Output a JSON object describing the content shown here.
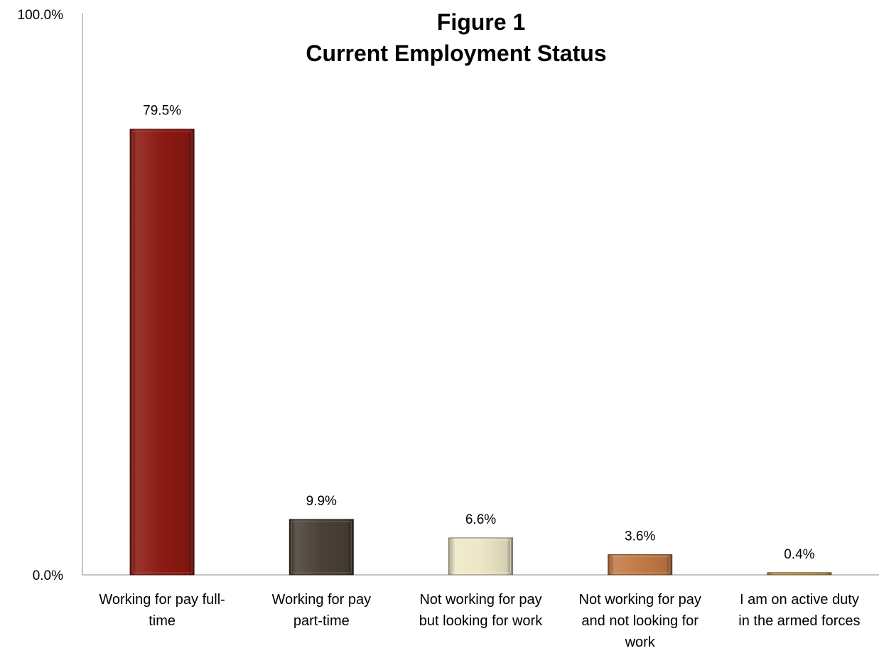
{
  "chart_data": {
    "type": "bar",
    "title": "Figure 1",
    "subtitle": "Current Employment Status",
    "categories": [
      [
        "Working for pay full-",
        "time"
      ],
      [
        "Working for pay",
        "part-time"
      ],
      [
        "Not working for pay",
        "but looking for work"
      ],
      [
        "Not working for pay",
        "and not looking for",
        "work"
      ],
      [
        "I am on active duty",
        "in the armed forces"
      ]
    ],
    "values": [
      79.5,
      9.9,
      6.6,
      3.6,
      0.4
    ],
    "data_labels": [
      "79.5%",
      "9.9%",
      "6.6%",
      "3.6%",
      "0.4%"
    ],
    "colors": [
      "#8b1a12",
      "#4a4036",
      "#eee7c7",
      "#c27a45",
      "#c3a055"
    ],
    "ylim": [
      0,
      100
    ],
    "y_ticks": [
      0,
      100
    ],
    "y_tick_labels": [
      "0.0%",
      "100.0%"
    ],
    "xlabel": "",
    "ylabel": "",
    "grid": false,
    "legend": "none"
  }
}
